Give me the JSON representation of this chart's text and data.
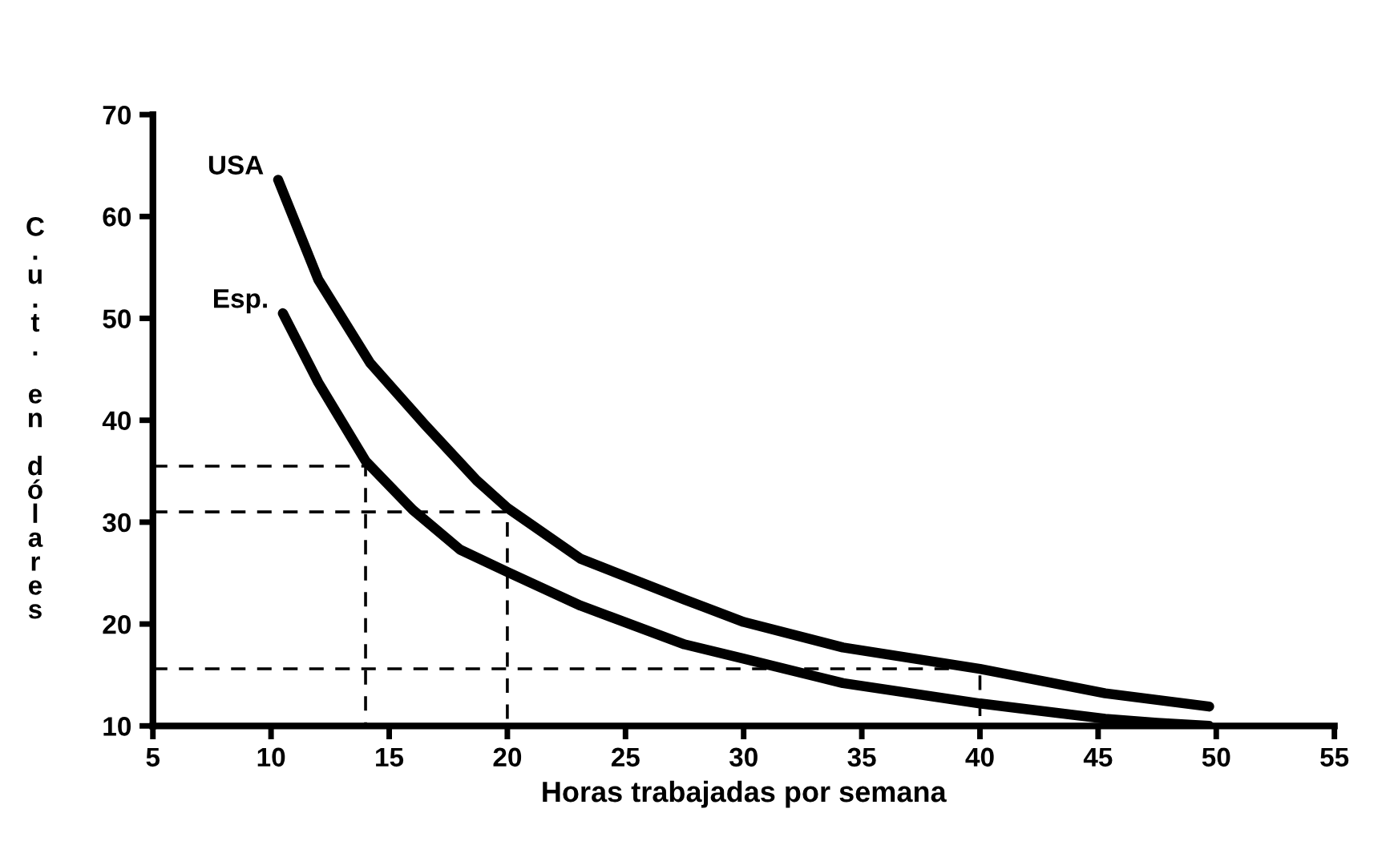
{
  "chart_data": {
    "type": "line",
    "xlabel": "Horas trabajadas por semana",
    "ylabel": "C.u.t. en dólares",
    "xlim": [
      5,
      55
    ],
    "ylim": [
      10,
      70
    ],
    "xticks": [
      5,
      10,
      15,
      20,
      25,
      30,
      35,
      40,
      45,
      50,
      55
    ],
    "yticks": [
      10,
      20,
      30,
      40,
      50,
      60,
      70
    ],
    "grid": false,
    "legend": false,
    "marker": "none",
    "series": [
      {
        "name": "USA",
        "color": "#000000",
        "line_style": "solid",
        "x": [
          10.3,
          12.0,
          14.2,
          16.5,
          18.7,
          20.0,
          23.1,
          27.5,
          30.0,
          34.2,
          40.0,
          45.3,
          49.7
        ],
        "values": [
          63.6,
          53.8,
          45.6,
          39.6,
          34.1,
          31.4,
          26.4,
          22.4,
          20.2,
          17.7,
          15.6,
          13.2,
          11.9
        ]
      },
      {
        "name": "Esp.",
        "color": "#000000",
        "line_style": "solid",
        "x": [
          10.5,
          12.0,
          14.0,
          16.0,
          18.0,
          20.0,
          23.1,
          27.5,
          30.0,
          34.2,
          40.0,
          45.3,
          47.5,
          49.7
        ],
        "values": [
          50.5,
          43.7,
          36.0,
          31.2,
          27.3,
          25.1,
          21.8,
          18.0,
          16.6,
          14.2,
          12.2,
          10.7,
          10.3,
          10.0
        ]
      },
      {
        "color": "#000000",
        "line_style": "dashed",
        "x": [
          5,
          14,
          14
        ],
        "values": [
          35.5,
          35.5,
          10
        ]
      },
      {
        "color": "#000000",
        "line_style": "dashed",
        "x": [
          5,
          20,
          20
        ],
        "values": [
          31,
          31,
          10
        ]
      },
      {
        "color": "#000000",
        "line_style": "dashed",
        "x": [
          5,
          40,
          40
        ],
        "values": [
          15.6,
          15.6,
          10
        ]
      }
    ]
  }
}
